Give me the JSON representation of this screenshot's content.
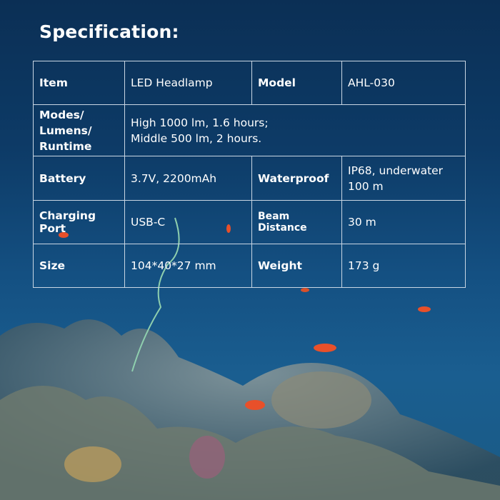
{
  "title": "Specification:",
  "rows": [
    {
      "k1": "Item",
      "v1": "LED Headlamp",
      "k2": "Model",
      "v2": "AHL-030"
    },
    {
      "k1_lines": [
        "Modes/",
        "Lumens/",
        "Runtime"
      ],
      "v1_lines": [
        "High 1000 lm, 1.6 hours;",
        "Middle 500 lm, 2 hours."
      ]
    },
    {
      "k1": "Battery",
      "v1": "3.7V, 2200mAh",
      "k2": "Waterproof",
      "v2_lines": [
        "IP68, underwater",
        "100 m"
      ]
    },
    {
      "k1": "Charging Port",
      "v1": "USB-C",
      "k2": "Beam Distance",
      "v2": "30 m"
    },
    {
      "k1": "Size",
      "v1": "104*40*27 mm",
      "k2": "Weight",
      "v2": "173 g"
    }
  ],
  "colors": {
    "water": "#0d3b67",
    "border": "#c9d6e3",
    "fish": "#e8502a"
  }
}
